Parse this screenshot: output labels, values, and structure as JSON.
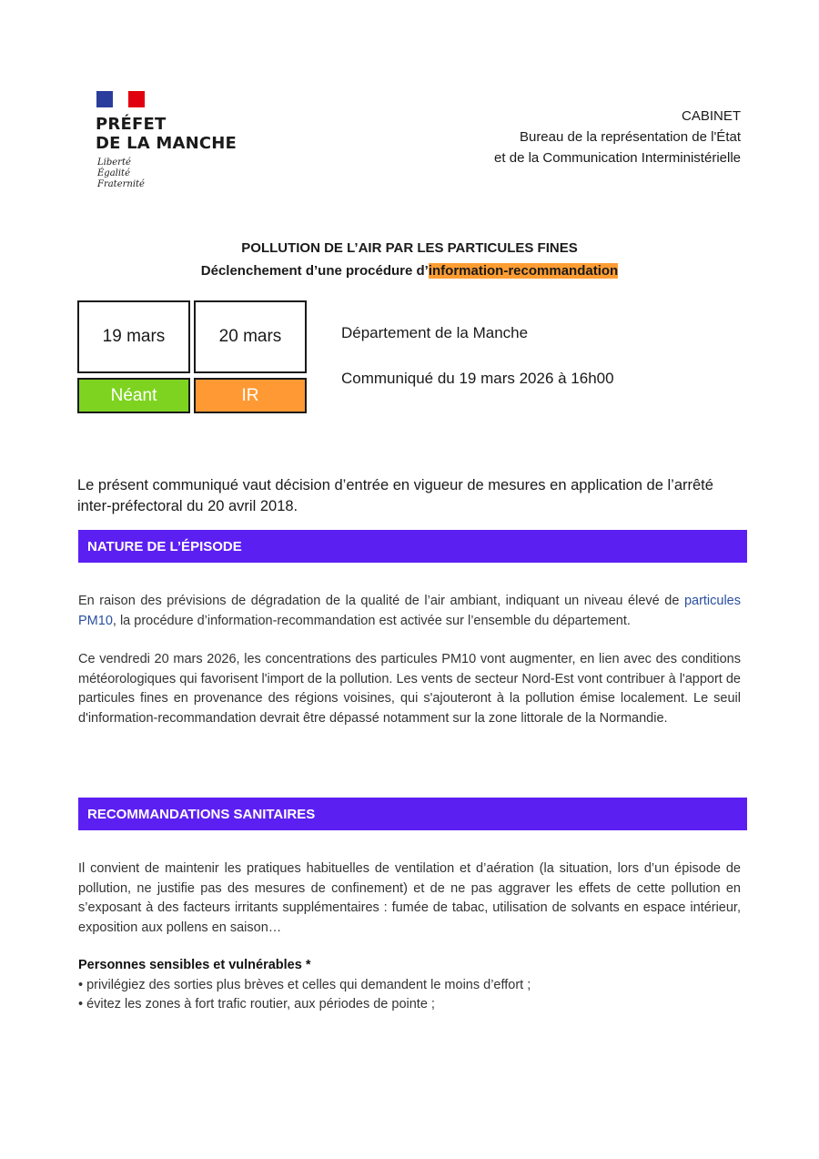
{
  "header": {
    "logo_lines": [
      "PRÉFET",
      "DE LA MANCHE"
    ],
    "motto": [
      "Liberté",
      "Égalité",
      "Fraternité"
    ],
    "office": [
      "CABINET",
      "Bureau de la représentation de l'État",
      "et de la Communication Interministérielle"
    ]
  },
  "title": {
    "line1": "POLLUTION DE L’AIR PAR LES PARTICULES FINES",
    "line2_prefix": "Déclenchement d’une procédure d’",
    "line2_highlight": "information-recommandation"
  },
  "days": [
    {
      "date": "19 mars",
      "status": "Néant",
      "color": "#7ed321"
    },
    {
      "date": "20 mars",
      "status": "IR",
      "color": "#ff9933"
    }
  ],
  "department": "Département de la Manche",
  "communique": "Communiqué du 19 mars 2026 à 16h00",
  "intro": "Le présent communiqué vaut décision d’entrée en vigueur de mesures en application de l’arrêté inter-préfectoral du 20 avril 2018.",
  "sections": {
    "nature": {
      "heading": "NATURE DE L’ÉPISODE",
      "p1_before": "En raison des prévisions de dégradation de la qualité de l’air ambiant, indiquant un niveau élevé de ",
      "p1_link": "particules PM10",
      "p1_after": ", la procédure d’information-recommandation est activée sur l’ensemble du département.",
      "p2": "Ce vendredi 20 mars 2026, les concentrations des particules PM10 vont augmenter, en lien avec des conditions météorologiques qui favorisent l'import de la pollution. Les vents de secteur Nord-Est vont contribuer à l'apport de particules fines en provenance des régions voisines, qui s'ajouteront à la pollution émise localement. Le seuil d'information-recommandation devrait être dépassé notamment sur la zone littorale de la Normandie."
    },
    "reco": {
      "heading": "RECOMMANDATIONS SANITAIRES",
      "p1": "Il convient de maintenir les pratiques habituelles de ventilation et d’aération (la situation, lors d’un épisode de pollution, ne justifie pas des mesures de confinement) et de ne pas aggraver les effets de cette pollution en s’exposant à des facteurs irritants supplémentaires : fumée de tabac, utilisation de solvants en espace intérieur, exposition aux pollens en saison…",
      "subheading": "Personnes sensibles et vulnérables *",
      "bullets": [
        "• privilégiez des sorties plus brèves et celles qui demandent le moins d’effort ;",
        "• évitez les zones à fort trafic routier, aux périodes de pointe ;"
      ]
    }
  },
  "colors": {
    "band": "#5c1ff2",
    "highlight": "#ff9d33",
    "link": "#2a4fa0"
  }
}
